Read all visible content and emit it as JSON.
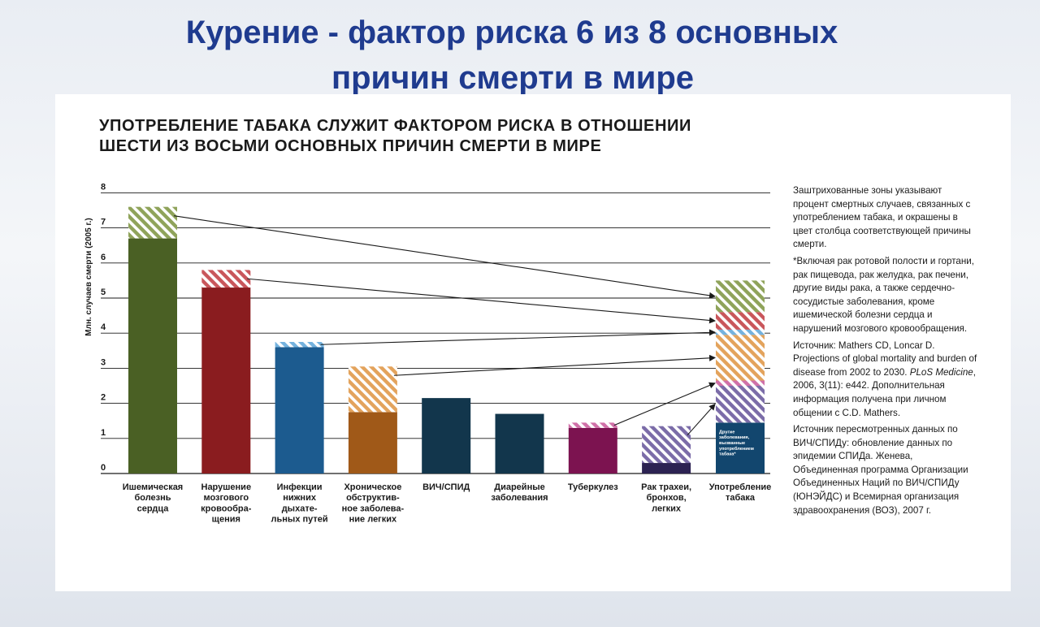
{
  "slide_title": {
    "line1": "Курение - фактор риска 6 из 8 основных",
    "line2": "причин смерти в мире"
  },
  "chart_data": {
    "type": "bar",
    "title_lines": [
      "УПОТРЕБЛЕНИЕ ТАБАКА СЛУЖИТ ФАКТОРОМ РИСКА В ОТНОШЕНИИ",
      "ШЕСТИ ИЗ ВОСЬМИ ОСНОВНЫХ ПРИЧИН СМЕРТИ В МИРЕ"
    ],
    "ylabel": "Млн. случаев смерти (2005 г.)",
    "ylim": [
      0,
      8
    ],
    "yticks": [
      0,
      1,
      2,
      3,
      4,
      5,
      6,
      7,
      8
    ],
    "grid": true,
    "categories": [
      {
        "lines": [
          "Ишемическая",
          "болезнь",
          "сердца"
        ],
        "total": 7.6,
        "tobacco": 0.9,
        "color": "#4a6024",
        "hatch": "#8fa35a"
      },
      {
        "lines": [
          "Нарушение",
          "мозгового",
          "кровообра-",
          "щения"
        ],
        "total": 5.8,
        "tobacco": 0.5,
        "color": "#8a1c1f",
        "hatch": "#c9565b"
      },
      {
        "lines": [
          "Инфекции",
          "нижних",
          "дыхате-",
          "льных путей"
        ],
        "total": 3.75,
        "tobacco": 0.15,
        "color": "#1c5b8f",
        "hatch": "#74b2de"
      },
      {
        "lines": [
          "Хроническое",
          "обструктив-",
          "ное заболева-",
          "ние легких"
        ],
        "total": 3.05,
        "tobacco": 1.3,
        "color": "#a05918",
        "hatch": "#e3a35c"
      },
      {
        "lines": [
          "ВИЧ/СПИД"
        ],
        "total": 2.15,
        "tobacco": 0,
        "color": "#12364c",
        "hatch": "#12364c"
      },
      {
        "lines": [
          "Диарейные",
          "заболевания"
        ],
        "total": 1.7,
        "tobacco": 0,
        "color": "#12364c",
        "hatch": "#12364c"
      },
      {
        "lines": [
          "Туберкулез"
        ],
        "total": 1.45,
        "tobacco": 0.15,
        "color": "#7c1350",
        "hatch": "#d070a8"
      },
      {
        "lines": [
          "Рак трахеи,",
          "бронхов,",
          "легких"
        ],
        "total": 1.35,
        "tobacco": 1.05,
        "color": "#2c2252",
        "hatch": "#7b6ca8"
      }
    ],
    "tobacco_bar": {
      "lines": [
        "Употребление",
        "табака"
      ],
      "base": 1.45,
      "base_color": "#12466e",
      "base_label": [
        "Другие",
        "заболевания,",
        "вызванные",
        "употреблением",
        "табака*"
      ],
      "stack_order": [
        7,
        6,
        3,
        2,
        1,
        0
      ]
    }
  },
  "notes": {
    "p1": "Заштрихованные зоны указывают процент смертных случаев, связанных с употреблением табака, и окрашены в цвет столбца соответствующей причины смерти.",
    "p2": "*Включая рак ротовой полости и гортани, рак пищевода, рак желудка, рак печени, другие виды рака, а также сердечно-сосудистые заболевания, кроме ишемической болезни сердца и нарушений мозгового кровообращения.",
    "p3_pre": "Источник: Mathers CD, Loncar D. Projections of global mortality and burden of disease from 2002 to 2030. ",
    "p3_journal": "PLoS Medicine",
    "p3_post": ", 2006, 3(11): e442. Дополнительная информация получена при личном общении с C.D. Mathers.",
    "p4": "Источник пересмотренных данных по ВИЧ/СПИДу: обновление данных по эпидемии СПИДа. Женева, Объединенная программа Организации Объединенных Наций по ВИЧ/СПИДу (ЮНЭЙДС) и Всемирная организация здравоохранения (ВОЗ), 2007 г."
  },
  "colors": {
    "title_blue": "#1f3b8f",
    "grid": "#1a1a1a"
  }
}
